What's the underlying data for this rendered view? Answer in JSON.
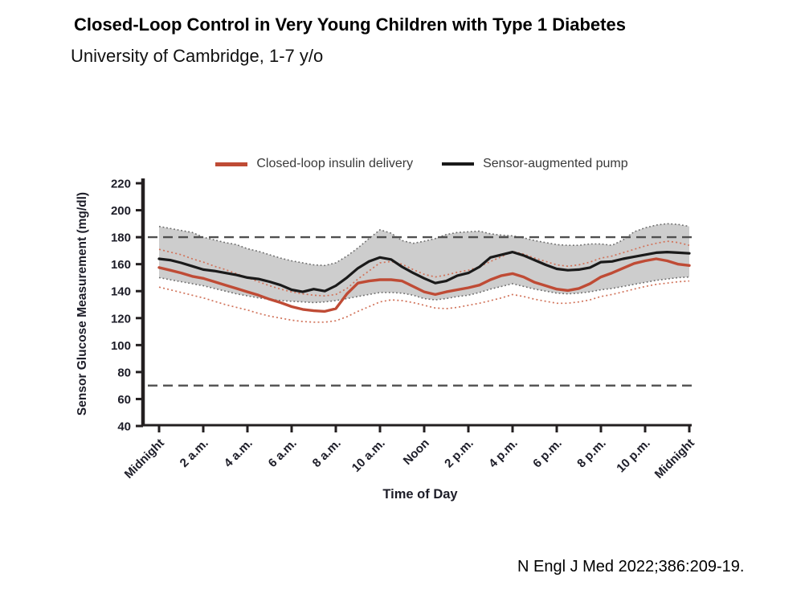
{
  "slide": {
    "title": "Closed-Loop Control in Very Young Children with Type 1 Diabetes",
    "subtitle": "University of Cambridge,  1-7 y/o",
    "citation": "N Engl J Med 2022;386:209-19."
  },
  "chart_data": {
    "type": "line",
    "xlabel": "Time of Day",
    "ylabel": "Sensor Glucose Measurement (mg/dl)",
    "xlim_hours": [
      0,
      24
    ],
    "ylim": [
      40,
      220
    ],
    "y_ticks": [
      220,
      200,
      180,
      160,
      140,
      120,
      100,
      80,
      60,
      40
    ],
    "x_ticks": [
      {
        "hour": 0,
        "label": "Midnight"
      },
      {
        "hour": 2,
        "label": "2 a.m."
      },
      {
        "hour": 4,
        "label": "4 a.m."
      },
      {
        "hour": 6,
        "label": "6 a.m."
      },
      {
        "hour": 8,
        "label": "8 a.m."
      },
      {
        "hour": 10,
        "label": "10 a.m."
      },
      {
        "hour": 12,
        "label": "Noon"
      },
      {
        "hour": 14,
        "label": "2 p.m."
      },
      {
        "hour": 16,
        "label": "4 p.m."
      },
      {
        "hour": 18,
        "label": "6 p.m."
      },
      {
        "hour": 20,
        "label": "8 p.m."
      },
      {
        "hour": 22,
        "label": "10 p.m."
      },
      {
        "hour": 24,
        "label": "Midnight"
      }
    ],
    "threshold_lines_mgdl": [
      180,
      70
    ],
    "legend": [
      {
        "label": "Closed-loop insulin delivery",
        "color": "#bf4b35"
      },
      {
        "label": "Sensor-augmented pump",
        "color": "#1a1a1a"
      }
    ],
    "x_hours": [
      0,
      0.5,
      1,
      1.5,
      2,
      2.5,
      3,
      3.5,
      4,
      4.5,
      5,
      5.5,
      6,
      6.5,
      7,
      7.5,
      8,
      8.5,
      9,
      9.5,
      10,
      10.5,
      11,
      11.5,
      12,
      12.5,
      13,
      13.5,
      14,
      14.5,
      15,
      15.5,
      16,
      16.5,
      17,
      17.5,
      18,
      18.5,
      19,
      19.5,
      20,
      20.5,
      21,
      21.5,
      22,
      22.5,
      23,
      23.5,
      24
    ],
    "series": [
      {
        "name": "Closed-loop insulin delivery",
        "color": "#bf4b35",
        "line": "solid",
        "quartile_style": "dotted-red",
        "median": [
          157.5,
          155.5,
          153.5,
          151,
          149.5,
          147,
          144.5,
          142,
          139.5,
          137,
          134,
          131.5,
          128.5,
          126.5,
          125.5,
          125,
          127,
          138,
          146,
          147.5,
          148.5,
          148.5,
          147.5,
          143.5,
          139.5,
          137.5,
          139.5,
          141,
          142.5,
          144.5,
          148.5,
          151.5,
          153,
          150.5,
          146.5,
          144,
          141.5,
          140.5,
          142,
          145.5,
          150.5,
          153.5,
          157,
          160.5,
          162.5,
          164,
          162.5,
          160,
          159
        ],
        "p25": [
          143,
          141,
          139,
          137,
          135,
          132.5,
          130,
          128,
          126,
          123.5,
          121.5,
          120,
          118.5,
          117.5,
          117,
          117,
          118,
          121,
          125,
          128.5,
          132,
          133.5,
          133,
          131.5,
          129.5,
          127.5,
          127,
          128,
          129.5,
          131,
          133,
          135,
          137.5,
          136,
          134,
          132.5,
          131,
          131,
          132,
          133.5,
          136,
          137.5,
          139.5,
          141.5,
          143.5,
          145,
          146,
          147,
          147.5
        ],
        "p75": [
          171,
          169,
          167,
          164,
          161.5,
          158.5,
          156,
          153,
          150,
          147,
          144,
          141.5,
          139.5,
          138,
          137,
          136.5,
          137.5,
          142,
          149,
          155,
          161,
          162,
          160,
          156,
          152.5,
          150.5,
          152,
          154,
          155.5,
          158,
          162,
          165.5,
          169.5,
          167.5,
          164.5,
          162,
          159.5,
          158.5,
          159.5,
          161.5,
          164.5,
          166,
          168.5,
          171,
          173.5,
          175.5,
          177,
          176,
          174
        ]
      },
      {
        "name": "Sensor-augmented pump",
        "color": "#1a1a1a",
        "line": "solid",
        "quartile_style": "gray-band",
        "band_fill": "#cdcdcd",
        "median": [
          164,
          163,
          161,
          158.5,
          156,
          155,
          153.5,
          152,
          150,
          149,
          147,
          144.5,
          141,
          139.5,
          141.5,
          140,
          144,
          150,
          157,
          162,
          165,
          163.5,
          158,
          153.5,
          149.5,
          146,
          147.5,
          151.5,
          153.5,
          158,
          165,
          167,
          169,
          166.5,
          163,
          159.5,
          156.5,
          155.5,
          156,
          157.5,
          161.5,
          162,
          164,
          165.5,
          167,
          168.5,
          169,
          168.5,
          168
        ],
        "p25": [
          150,
          148.5,
          147,
          145.5,
          144,
          142,
          140,
          138,
          136.5,
          135,
          134,
          133,
          132.5,
          132,
          131.5,
          132,
          133,
          134.5,
          136,
          137.5,
          139,
          139,
          138.5,
          137,
          134.5,
          133.5,
          134.5,
          136,
          137,
          139,
          141.5,
          143.5,
          145.5,
          143.5,
          141.5,
          140,
          138.5,
          138,
          138.5,
          139.5,
          141,
          142,
          143.5,
          145,
          146.5,
          148,
          149,
          150,
          150.5
        ],
        "p75": [
          188,
          186.5,
          185,
          183.5,
          180,
          178,
          176,
          174.5,
          171.5,
          169.5,
          167,
          164.5,
          162.5,
          161,
          159.5,
          159,
          161,
          166,
          172,
          179,
          185.5,
          183,
          177.5,
          175.5,
          177,
          179,
          182,
          183.5,
          184,
          184.5,
          182.5,
          181.5,
          181,
          179.5,
          177.5,
          176,
          174.5,
          174,
          174,
          175,
          175,
          174,
          178,
          184,
          187,
          189,
          190,
          189.5,
          188
        ]
      }
    ],
    "colors": {
      "threshold_dash": "#4f4f4f",
      "axis": "#231f20",
      "tick_text": "#1d1d28",
      "band_fill": "#cdcdcd",
      "band_edge": "#6e6e6e",
      "dotted_red": "#d1735a"
    }
  }
}
